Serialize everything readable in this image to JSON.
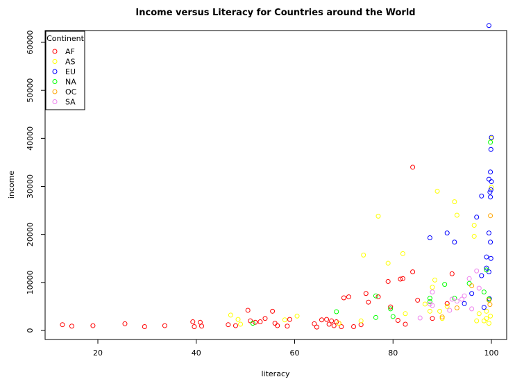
{
  "chart_data": {
    "type": "scatter",
    "title": "Income versus Literacy for Countries around the World",
    "xlabel": "literacy",
    "ylabel": "income",
    "xlim": [
      10,
      100
    ],
    "ylim": [
      0,
      65000
    ],
    "x_ticks": [
      20,
      40,
      60,
      80,
      100
    ],
    "y_ticks": [
      0,
      10000,
      20000,
      30000,
      40000,
      50000,
      60000
    ],
    "legend": {
      "title": "Continent",
      "position": "top-left",
      "entries": [
        {
          "name": "AF",
          "color": "#ff0000"
        },
        {
          "name": "AS",
          "color": "#ffff00"
        },
        {
          "name": "EU",
          "color": "#0000ff"
        },
        {
          "name": "NA",
          "color": "#00ff00"
        },
        {
          "name": "OC",
          "color": "#ffa500"
        },
        {
          "name": "SA",
          "color": "#ee82ee"
        }
      ]
    },
    "series": [
      {
        "name": "AF",
        "color": "#ff0000",
        "points": [
          [
            12.8,
            1200
          ],
          [
            14.7,
            900
          ],
          [
            19.0,
            1000
          ],
          [
            25.5,
            1400
          ],
          [
            29.5,
            800
          ],
          [
            33.6,
            1000
          ],
          [
            39.3,
            1800
          ],
          [
            39.6,
            800
          ],
          [
            40.8,
            1700
          ],
          [
            41.1,
            900
          ],
          [
            46.5,
            1200
          ],
          [
            48.0,
            1000
          ],
          [
            50.5,
            4200
          ],
          [
            51.0,
            2000
          ],
          [
            52.0,
            1700
          ],
          [
            53.0,
            1800
          ],
          [
            54.0,
            2500
          ],
          [
            55.5,
            4000
          ],
          [
            56.0,
            1500
          ],
          [
            56.5,
            1000
          ],
          [
            58.5,
            900
          ],
          [
            59.0,
            2300
          ],
          [
            64.0,
            1400
          ],
          [
            64.5,
            700
          ],
          [
            65.5,
            2200
          ],
          [
            66.5,
            2300
          ],
          [
            67.0,
            1300
          ],
          [
            67.5,
            2000
          ],
          [
            68.0,
            1000
          ],
          [
            68.5,
            1800
          ],
          [
            69.0,
            1500
          ],
          [
            69.5,
            800
          ],
          [
            70.0,
            6800
          ],
          [
            71.0,
            7000
          ],
          [
            72.0,
            800
          ],
          [
            73.5,
            1200
          ],
          [
            74.5,
            7700
          ],
          [
            75.0,
            5900
          ],
          [
            77.0,
            7000
          ],
          [
            79.0,
            10200
          ],
          [
            79.5,
            4900
          ],
          [
            81.0,
            2100
          ],
          [
            81.5,
            10700
          ],
          [
            82.0,
            10800
          ],
          [
            82.5,
            1300
          ],
          [
            84.0,
            12200
          ],
          [
            84.0,
            34000
          ],
          [
            85.0,
            6300
          ],
          [
            88.0,
            2500
          ],
          [
            91.0,
            5600
          ],
          [
            92.0,
            11800
          ]
        ]
      },
      {
        "name": "AS",
        "color": "#ffff00",
        "points": [
          [
            47.0,
            3200
          ],
          [
            48.5,
            2300
          ],
          [
            49.0,
            1300
          ],
          [
            58.0,
            2200
          ],
          [
            60.5,
            3000
          ],
          [
            69.0,
            1500
          ],
          [
            73.5,
            2000
          ],
          [
            74.0,
            15700
          ],
          [
            77.0,
            23800
          ],
          [
            79.0,
            14000
          ],
          [
            82.0,
            16000
          ],
          [
            82.5,
            3500
          ],
          [
            86.5,
            5500
          ],
          [
            87.5,
            4000
          ],
          [
            88.0,
            9000
          ],
          [
            88.5,
            10500
          ],
          [
            89.0,
            29000
          ],
          [
            89.5,
            4000
          ],
          [
            90.0,
            2500
          ],
          [
            91.0,
            5000
          ],
          [
            92.5,
            26800
          ],
          [
            93.0,
            24000
          ],
          [
            96.5,
            19600
          ],
          [
            96.5,
            21900
          ],
          [
            97.0,
            2000
          ],
          [
            97.5,
            3500
          ],
          [
            98.5,
            2000
          ],
          [
            99.0,
            2500
          ],
          [
            99.0,
            4000
          ],
          [
            99.5,
            1500
          ],
          [
            99.5,
            6600
          ],
          [
            99.8,
            3000
          ],
          [
            100.0,
            29800
          ],
          [
            100.0,
            40000
          ]
        ]
      },
      {
        "name": "EU",
        "color": "#0000ff",
        "points": [
          [
            87.5,
            19300
          ],
          [
            91.0,
            20300
          ],
          [
            92.5,
            18400
          ],
          [
            94.5,
            5600
          ],
          [
            96.0,
            7700
          ],
          [
            97.0,
            23600
          ],
          [
            98.0,
            11400
          ],
          [
            98.0,
            28000
          ],
          [
            98.5,
            4800
          ],
          [
            99.0,
            13000
          ],
          [
            99.0,
            15300
          ],
          [
            99.5,
            12200
          ],
          [
            99.5,
            20300
          ],
          [
            99.5,
            31500
          ],
          [
            99.5,
            63500
          ],
          [
            99.6,
            6600
          ],
          [
            99.7,
            28800
          ],
          [
            99.8,
            18400
          ],
          [
            99.8,
            27800
          ],
          [
            99.8,
            33000
          ],
          [
            99.9,
            37700
          ],
          [
            99.9,
            29300
          ],
          [
            99.9,
            15000
          ],
          [
            100.0,
            40200
          ],
          [
            100.0,
            31000
          ]
        ]
      },
      {
        "name": "NA",
        "color": "#00ff00",
        "points": [
          [
            51.5,
            1500
          ],
          [
            68.5,
            3900
          ],
          [
            76.5,
            7200
          ],
          [
            76.5,
            2700
          ],
          [
            79.5,
            4500
          ],
          [
            80.0,
            2900
          ],
          [
            87.5,
            6700
          ],
          [
            87.5,
            6000
          ],
          [
            90.5,
            9600
          ],
          [
            92.5,
            6700
          ],
          [
            95.5,
            9800
          ],
          [
            98.5,
            8000
          ],
          [
            99.0,
            12600
          ],
          [
            99.5,
            6500
          ],
          [
            99.8,
            39200
          ]
        ]
      },
      {
        "name": "OC",
        "color": "#ffa500",
        "points": [
          [
            90.0,
            2800
          ],
          [
            93.0,
            4700
          ],
          [
            96.0,
            9300
          ],
          [
            99.5,
            6300
          ],
          [
            99.7,
            5400
          ],
          [
            99.8,
            23900
          ]
        ]
      },
      {
        "name": "SA",
        "color": "#ee82ee",
        "points": [
          [
            85.5,
            2600
          ],
          [
            87.5,
            5500
          ],
          [
            88.0,
            8000
          ],
          [
            88.0,
            5200
          ],
          [
            91.5,
            4200
          ],
          [
            92.0,
            6500
          ],
          [
            93.0,
            6100
          ],
          [
            94.0,
            6500
          ],
          [
            94.5,
            7200
          ],
          [
            95.5,
            10800
          ],
          [
            96.0,
            4500
          ],
          [
            97.0,
            12400
          ],
          [
            97.5,
            8800
          ]
        ]
      }
    ]
  }
}
